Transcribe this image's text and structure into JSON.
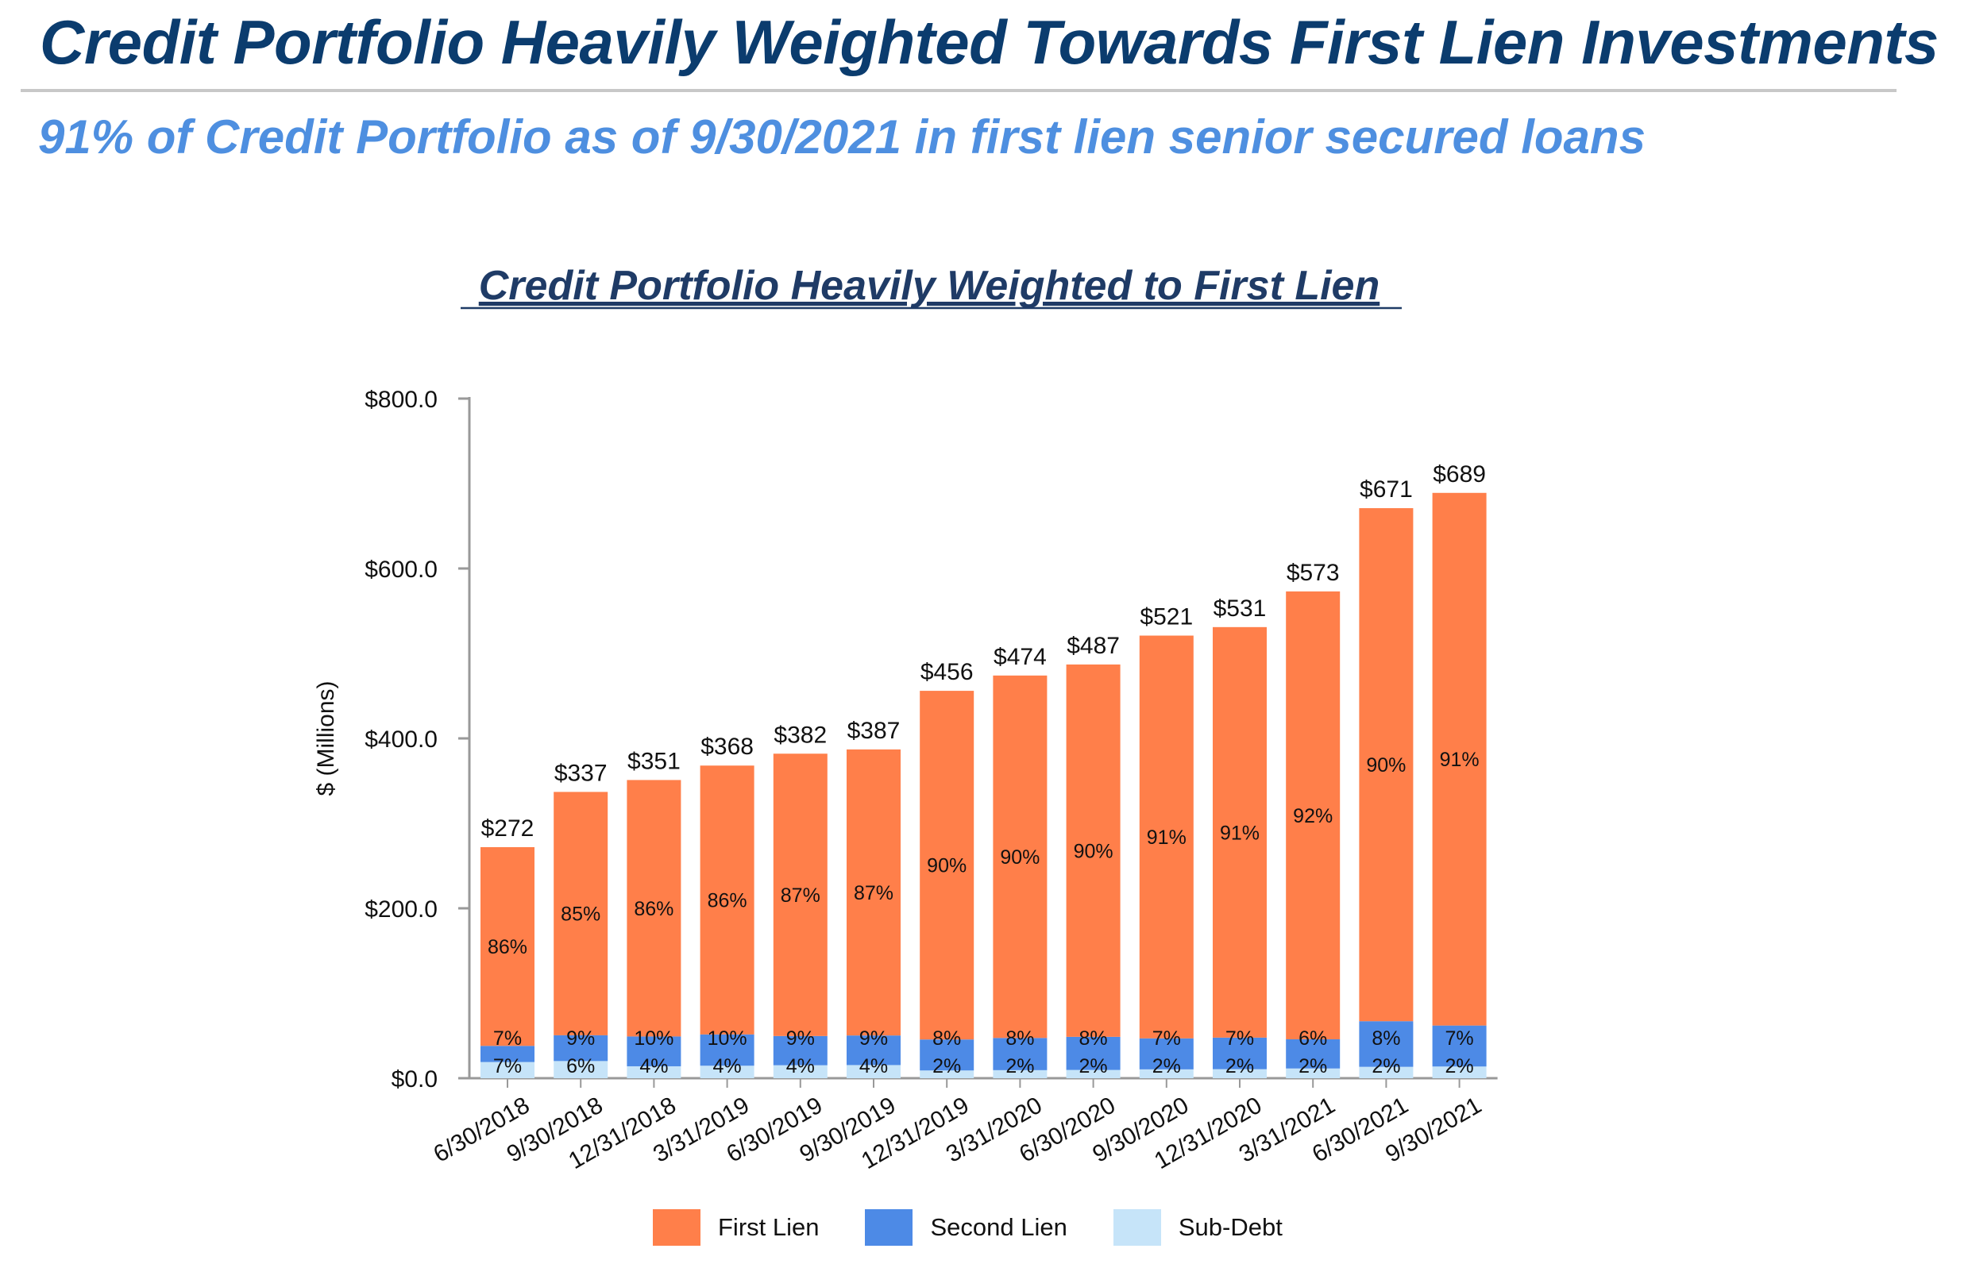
{
  "header": {
    "title": "Credit Portfolio Heavily Weighted Towards First Lien Investments",
    "subtitle": "91% of Credit Portfolio as of 9/30/2021 in first lien senior secured loans"
  },
  "colors": {
    "first_lien": "#ff7f4a",
    "second_lien": "#4d8ae6",
    "sub_debt": "#c6e4f9",
    "axis": "#999999",
    "title": "#0b3c6e",
    "subtitle": "#4e8fe0"
  },
  "chart_data": {
    "type": "bar",
    "stacked": true,
    "title": "Credit Portfolio Heavily Weighted to First Lien",
    "xlabel": "",
    "ylabel": "$ (Millions)",
    "ylim": [
      0,
      800
    ],
    "yticks": [
      0,
      200,
      400,
      600,
      800
    ],
    "ytick_labels": [
      "$0.0",
      "$200.0",
      "$400.0",
      "$600.0",
      "$800.0"
    ],
    "categories": [
      "6/30/2018",
      "9/30/2018",
      "12/31/2018",
      "3/31/2019",
      "6/30/2019",
      "9/30/2019",
      "12/31/2019",
      "3/31/2020",
      "6/30/2020",
      "9/30/2020",
      "12/31/2020",
      "3/31/2021",
      "6/30/2021",
      "9/30/2021"
    ],
    "totals": [
      272,
      337,
      351,
      368,
      382,
      387,
      456,
      474,
      487,
      521,
      531,
      573,
      671,
      689
    ],
    "total_labels": [
      "$272",
      "$337",
      "$351",
      "$368",
      "$382",
      "$387",
      "$456",
      "$474",
      "$487",
      "$521",
      "$531",
      "$573",
      "$671",
      "$689"
    ],
    "series": [
      {
        "name": "Sub-Debt",
        "color": "#c6e4f9",
        "percent": [
          7,
          6,
          4,
          4,
          4,
          4,
          2,
          2,
          2,
          2,
          2,
          2,
          2,
          2
        ],
        "labels": [
          "7%",
          "6%",
          "4%",
          "4%",
          "4%",
          "4%",
          "2%",
          "2%",
          "2%",
          "2%",
          "2%",
          "2%",
          "2%",
          "2%"
        ]
      },
      {
        "name": "Second Lien",
        "color": "#4d8ae6",
        "percent": [
          7,
          9,
          10,
          10,
          9,
          9,
          8,
          8,
          8,
          7,
          7,
          6,
          8,
          7
        ],
        "labels": [
          "7%",
          "9%",
          "10%",
          "10%",
          "9%",
          "9%",
          "8%",
          "8%",
          "8%",
          "7%",
          "7%",
          "6%",
          "8%",
          "7%"
        ]
      },
      {
        "name": "First Lien",
        "color": "#ff7f4a",
        "percent": [
          86,
          85,
          86,
          86,
          87,
          87,
          90,
          90,
          90,
          91,
          91,
          92,
          90,
          91
        ],
        "labels": [
          "86%",
          "85%",
          "86%",
          "86%",
          "87%",
          "87%",
          "90%",
          "90%",
          "90%",
          "91%",
          "91%",
          "92%",
          "90%",
          "91%"
        ]
      }
    ],
    "legend": [
      "First Lien",
      "Second Lien",
      "Sub-Debt"
    ],
    "legend_position": "bottom"
  }
}
